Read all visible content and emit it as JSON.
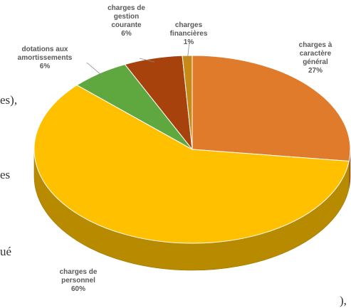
{
  "page_fragments": [
    "es),",
    "es",
    "ué",
    "),"
  ],
  "chart_data": {
    "type": "pie",
    "title": "",
    "slices": [
      {
        "label": "charges à caractère général",
        "label_lines": [
          "charges à",
          "caractère",
          "général"
        ],
        "value": 27,
        "pct_label": "27%",
        "color": "#E07B2B"
      },
      {
        "label": "charges de personnel",
        "label_lines": [
          "charges de",
          "personnel"
        ],
        "value": 60,
        "pct_label": "60%",
        "color": "#FFC000"
      },
      {
        "label": "dotations aux amortissements",
        "label_lines": [
          "dotations aux",
          "amortissements"
        ],
        "value": 6,
        "pct_label": "6%",
        "color": "#5FA83F"
      },
      {
        "label": "charges de gestion courante",
        "label_lines": [
          "charges de",
          "gestion",
          "courante"
        ],
        "value": 6,
        "pct_label": "6%",
        "color": "#A8420C"
      },
      {
        "label": "charges financières",
        "label_lines": [
          "charges",
          "financières"
        ],
        "value": 1,
        "pct_label": "1%",
        "color": "#C88A16"
      }
    ]
  }
}
